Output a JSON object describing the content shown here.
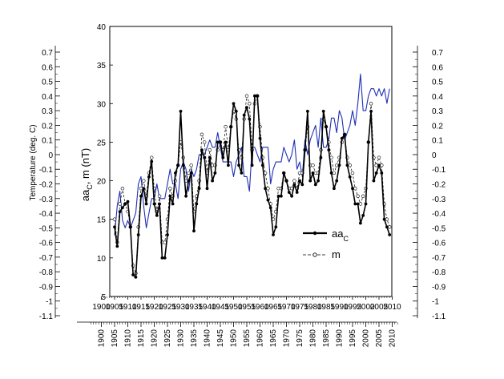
{
  "chart_data": {
    "type": "line",
    "ylabel_left": "Temperature (deg. C)",
    "ylabel_inner": "aa",
    "ylabel_inner_sub": "C",
    "ylabel_inner_rest": ", m (nT)",
    "legend": {
      "placement": "right",
      "aa_label": "aa",
      "aa_sub": "C",
      "m_label": "m"
    },
    "x_range": [
      1900,
      2010
    ],
    "x_ticks": [
      "1900",
      "1905",
      "1910",
      "1915",
      "1920",
      "1925",
      "1930",
      "1935",
      "1940",
      "1945",
      "1950",
      "1955",
      "1960",
      "1965",
      "1970",
      "1975",
      "1980",
      "1985",
      "1990",
      "1995",
      "2000",
      "2005",
      "2010"
    ],
    "inner_y_range": [
      5,
      40
    ],
    "inner_y_ticks": [
      "5",
      "10",
      "15",
      "20",
      "25",
      "30",
      "35",
      "40"
    ],
    "temp_range": [
      -1.1,
      0.7
    ],
    "temp_ticks": [
      "0.7",
      "0.6",
      "0.5",
      "0.4",
      "0.3",
      "0.2",
      "0.1",
      "0",
      "-0.1",
      "-0.2",
      "-0.3",
      "-0.4",
      "-0.5",
      "-0.6",
      "-0.7",
      "-0.8",
      "-0.9",
      "-1",
      "-1.1"
    ],
    "grid": false,
    "series": [
      {
        "name": "aa_C",
        "color": "#000000",
        "x": [
          1905,
          1906,
          1907,
          1908,
          1909,
          1910,
          1911,
          1912,
          1913,
          1914,
          1915,
          1916,
          1917,
          1918,
          1919,
          1920,
          1921,
          1922,
          1923,
          1924,
          1925,
          1926,
          1927,
          1928,
          1929,
          1930,
          1931,
          1932,
          1933,
          1934,
          1935,
          1936,
          1937,
          1938,
          1939,
          1940,
          1941,
          1942,
          1943,
          1944,
          1945,
          1946,
          1947,
          1948,
          1949,
          1950,
          1951,
          1952,
          1953,
          1954,
          1955,
          1956,
          1957,
          1958,
          1959,
          1960,
          1961,
          1962,
          1963,
          1964,
          1965,
          1966,
          1967,
          1968,
          1969,
          1970,
          1971,
          1972,
          1973,
          1974,
          1975,
          1976,
          1977,
          1978,
          1979,
          1980,
          1981,
          1982,
          1983,
          1984,
          1985,
          1986,
          1987,
          1988,
          1989,
          1990,
          1991,
          1992,
          1993,
          1994,
          1995,
          1996,
          1997,
          1998,
          1999,
          2000,
          2001,
          2002,
          2003,
          2004,
          2005,
          2006,
          2007,
          2008,
          2009
        ],
        "values": [
          14,
          11.5,
          16,
          16.5,
          17,
          17.3,
          14,
          7.8,
          7.5,
          13,
          18,
          19,
          17,
          20.5,
          22.5,
          17,
          15.5,
          17,
          10,
          10,
          13,
          18,
          17,
          21,
          22,
          29,
          22,
          18,
          20,
          21,
          13.5,
          17,
          19,
          24,
          23,
          19,
          23,
          20,
          21,
          25,
          25,
          23,
          25,
          22,
          27,
          30,
          29,
          22,
          21,
          28.5,
          29.5,
          28,
          22,
          31,
          31,
          25.5,
          22,
          19,
          17.5,
          16.5,
          13,
          14,
          18,
          18,
          21,
          20,
          18.5,
          18,
          19.5,
          18.5,
          20,
          19.5,
          24,
          29,
          20,
          21,
          19.5,
          20,
          23,
          29,
          27,
          24,
          21,
          19,
          20,
          22,
          25.5,
          26,
          22,
          20.5,
          19,
          17,
          17,
          14.5,
          15.5,
          17,
          25,
          29,
          20,
          21,
          22,
          21,
          15,
          14,
          13
        ]
      },
      {
        "name": "m",
        "color": "#000000",
        "x": [
          1905,
          1906,
          1907,
          1908,
          1909,
          1910,
          1911,
          1912,
          1913,
          1914,
          1915,
          1916,
          1917,
          1918,
          1919,
          1920,
          1921,
          1922,
          1923,
          1924,
          1925,
          1926,
          1927,
          1928,
          1929,
          1930,
          1931,
          1932,
          1933,
          1934,
          1935,
          1936,
          1937,
          1938,
          1939,
          1940,
          1941,
          1942,
          1943,
          1944,
          1945,
          1946,
          1947,
          1948,
          1949,
          1950,
          1951,
          1952,
          1953,
          1954,
          1955,
          1956,
          1957,
          1958,
          1959,
          1960,
          1961,
          1962,
          1963,
          1964,
          1965,
          1966,
          1967,
          1968,
          1969,
          1970,
          1971,
          1972,
          1973,
          1974,
          1975,
          1976,
          1977,
          1978,
          1979,
          1980,
          1981,
          1982,
          1983,
          1984,
          1985,
          1986,
          1987,
          1988,
          1989,
          1990,
          1991,
          1992,
          1993,
          1994,
          1995,
          1996,
          1997,
          1998,
          1999,
          2000,
          2001,
          2002,
          2003,
          2004,
          2005,
          2006,
          2007,
          2008,
          2009
        ],
        "values": [
          15,
          12,
          17,
          19,
          17,
          16,
          14,
          9,
          8,
          14,
          19,
          20,
          18,
          21,
          23,
          19,
          16,
          18,
          12,
          12,
          15,
          19,
          18,
          20,
          22,
          25,
          23,
          20,
          21,
          22,
          16,
          18,
          20,
          26,
          25,
          21,
          24,
          22,
          22,
          24,
          25,
          24,
          27,
          24,
          27,
          29,
          28,
          24,
          23,
          28,
          31,
          30,
          24,
          30,
          31,
          27,
          23,
          21,
          19,
          17,
          15,
          16,
          19,
          19,
          21,
          20,
          19,
          19,
          20,
          19,
          21,
          21,
          24,
          27,
          22,
          22,
          21,
          21,
          24,
          28,
          27,
          25,
          23,
          21,
          22,
          23,
          25,
          26,
          23,
          22,
          21,
          19,
          18,
          17,
          18,
          19,
          25,
          30,
          23,
          22,
          23,
          22,
          17,
          15,
          14
        ]
      },
      {
        "name": "Temperature",
        "color": "#1f2fb4",
        "x": [
          1905,
          1906,
          1907,
          1908,
          1909,
          1910,
          1911,
          1912,
          1913,
          1914,
          1915,
          1916,
          1917,
          1918,
          1919,
          1920,
          1921,
          1922,
          1923,
          1924,
          1925,
          1926,
          1927,
          1928,
          1929,
          1930,
          1931,
          1932,
          1933,
          1934,
          1935,
          1936,
          1937,
          1938,
          1939,
          1940,
          1941,
          1942,
          1943,
          1944,
          1945,
          1946,
          1947,
          1948,
          1949,
          1950,
          1951,
          1952,
          1953,
          1954,
          1955,
          1956,
          1957,
          1958,
          1959,
          1960,
          1961,
          1962,
          1963,
          1964,
          1965,
          1966,
          1967,
          1968,
          1969,
          1970,
          1971,
          1972,
          1973,
          1974,
          1975,
          1976,
          1977,
          1978,
          1979,
          1980,
          1981,
          1982,
          1983,
          1984,
          1985,
          1986,
          1987,
          1988,
          1989,
          1990,
          1991,
          1992,
          1993,
          1994,
          1995,
          1996,
          1997,
          1998,
          1999,
          2000,
          2001,
          2002,
          2003,
          2004,
          2005,
          2006,
          2007,
          2008,
          2009
        ],
        "values": [
          -0.55,
          -0.35,
          -0.25,
          -0.45,
          -0.5,
          -0.45,
          -0.5,
          -0.45,
          -0.4,
          -0.2,
          -0.15,
          -0.35,
          -0.5,
          -0.4,
          -0.3,
          -0.3,
          -0.2,
          -0.3,
          -0.3,
          -0.3,
          -0.2,
          -0.1,
          -0.2,
          -0.2,
          -0.3,
          -0.1,
          -0.05,
          -0.1,
          -0.25,
          -0.1,
          -0.15,
          -0.1,
          0.0,
          0.0,
          0.0,
          0.05,
          0.1,
          0.05,
          0.05,
          0.15,
          0.05,
          -0.05,
          -0.05,
          -0.05,
          -0.05,
          -0.15,
          -0.05,
          0.0,
          0.05,
          -0.15,
          -0.15,
          -0.25,
          0.05,
          0.05,
          0.0,
          -0.05,
          0.05,
          0.05,
          0.05,
          -0.2,
          -0.1,
          -0.05,
          -0.05,
          -0.05,
          0.05,
          0.0,
          -0.05,
          0.0,
          0.1,
          -0.1,
          -0.05,
          -0.15,
          0.1,
          0.0,
          0.1,
          0.15,
          0.2,
          0.05,
          0.25,
          0.05,
          0.05,
          0.1,
          0.25,
          0.25,
          0.15,
          0.3,
          0.25,
          0.1,
          0.15,
          0.2,
          0.3,
          0.2,
          0.35,
          0.55,
          0.3,
          0.3,
          0.4,
          0.45,
          0.45,
          0.4,
          0.45,
          0.4,
          0.45,
          0.35,
          0.45
        ]
      }
    ]
  }
}
